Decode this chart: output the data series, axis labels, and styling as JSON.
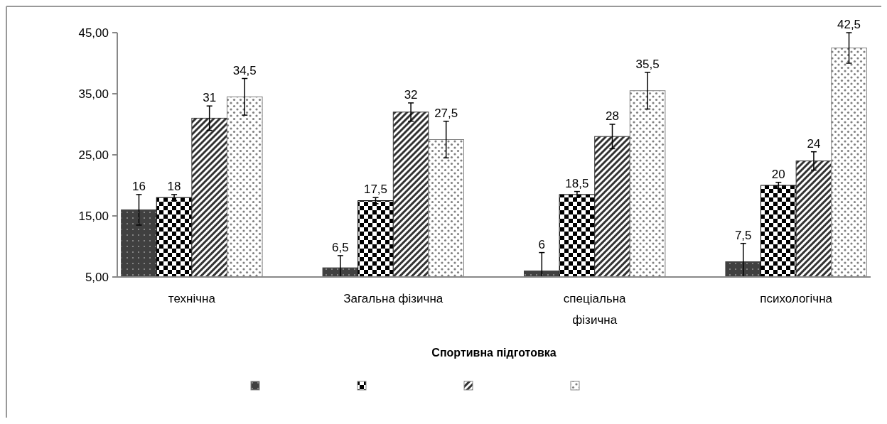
{
  "chart_data": {
    "type": "bar",
    "xlabel": "Спортивна підготовка",
    "categories": [
      "технічна",
      "Загальна фізична",
      "спеціальна фізична",
      "психологічна"
    ],
    "series": [
      {
        "color": "#404040",
        "values": [
          16,
          6.5,
          6,
          7.5
        ],
        "value_labels": [
          "16",
          "6,5",
          "6",
          "7,5"
        ],
        "errors": [
          2.5,
          [
            5,
            8.5
          ],
          [
            5,
            9
          ],
          [
            5,
            10.5
          ]
        ]
      },
      {
        "color": "#000000",
        "values": [
          18,
          17.5,
          18.5,
          20
        ],
        "value_labels": [
          "18",
          "17,5",
          "18,5",
          "20"
        ],
        "errors": [
          0.5,
          0.5,
          0.5,
          0.5
        ]
      },
      {
        "color": "#333333",
        "values": [
          31,
          32,
          28,
          24
        ],
        "value_labels": [
          "31",
          "32",
          "28",
          "24"
        ],
        "errors": [
          2,
          1.5,
          2,
          1.5
        ]
      },
      {
        "color": "#808080",
        "values": [
          34.5,
          27.5,
          35.5,
          42.5
        ],
        "value_labels": [
          "34,5",
          "27,5",
          "35,5",
          "42,5"
        ],
        "errors": [
          3,
          3,
          3,
          2.5
        ]
      }
    ],
    "ylim": [
      5,
      45
    ],
    "yticks": [
      {
        "value": 5,
        "label": "5,00"
      },
      {
        "value": 15,
        "label": "15,00"
      },
      {
        "value": 25,
        "label": "25,00"
      },
      {
        "value": 35,
        "label": "35,00"
      },
      {
        "value": 45,
        "label": "45,00"
      }
    ],
    "grid": false
  }
}
